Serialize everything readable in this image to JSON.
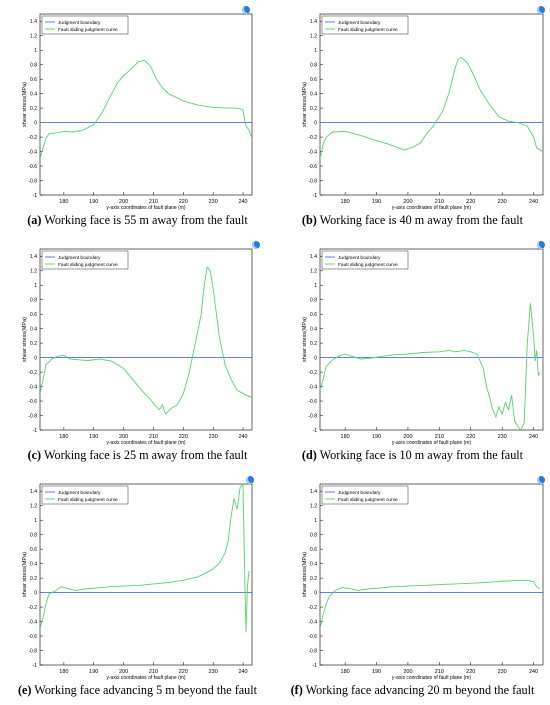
{
  "colors": {
    "boundary": "#4a6fe3",
    "curve": "#59d26b",
    "axis": "#000000",
    "logo": "#2a7bd6"
  },
  "shared": {
    "ylabel": "shear   stress(MPa)",
    "xlabel": "y-axis coordinates of fault plane (m)",
    "legend": [
      "Judgment boundary",
      "Fault sliding judgment curve"
    ],
    "xticks": [
      "180",
      "190",
      "200",
      "210",
      "220",
      "230",
      "240"
    ],
    "yticks": [
      "-1",
      "-0.8",
      "-0.6",
      "-0.4",
      "-0.2",
      "0",
      "0.2",
      "0.4",
      "0.6",
      "0.8",
      "1",
      "1.2",
      "1.4"
    ]
  },
  "captions": [
    {
      "label": "(a)",
      "text": " Working face is 55 m away from the fault"
    },
    {
      "label": "(b)",
      "text": " Working face is 40 m away from the fault"
    },
    {
      "label": "(c)",
      "text": " Working face is 25 m away from the fault"
    },
    {
      "label": "(d)",
      "text": " Working face is 10 m away from the fault"
    },
    {
      "label": "(e)",
      "text": " Working face advancing 5 m beyond the fault"
    },
    {
      "label": "(f)",
      "text": " Working face advancing 20 m beyond the fault"
    }
  ],
  "chart_data": [
    {
      "type": "line",
      "xlim": [
        172,
        243
      ],
      "ylim": [
        -1,
        1.5
      ],
      "xlabel": "y-axis coordinates of fault plane (m)",
      "ylabel": "shear   stress(MPa)",
      "legend_position": "top-left",
      "grid": false,
      "series": [
        {
          "name": "Judgment boundary",
          "x": [
            172,
            243
          ],
          "y": [
            0,
            0
          ]
        },
        {
          "name": "Fault sliding judgment curve",
          "x": [
            172,
            173,
            174,
            175,
            178,
            180,
            183,
            186,
            190,
            193,
            195,
            198,
            200,
            202,
            204,
            205,
            207,
            209,
            211,
            213,
            215,
            220,
            225,
            230,
            235,
            238,
            240,
            240.5,
            241,
            242,
            243
          ],
          "y": [
            -0.5,
            -0.35,
            -0.22,
            -0.15,
            -0.14,
            -0.12,
            -0.13,
            -0.11,
            -0.03,
            0.15,
            0.32,
            0.55,
            0.65,
            0.72,
            0.8,
            0.84,
            0.86,
            0.78,
            0.6,
            0.48,
            0.4,
            0.3,
            0.24,
            0.21,
            0.2,
            0.2,
            0.18,
            0.05,
            -0.05,
            -0.1,
            -0.22
          ]
        }
      ]
    },
    {
      "type": "line",
      "xlim": [
        172,
        243
      ],
      "ylim": [
        -1,
        1.5
      ],
      "xlabel": "y-axis coordinates of fault plane (m)",
      "ylabel": "shear   stress(MPa)",
      "legend_position": "top-left",
      "grid": false,
      "series": [
        {
          "name": "Judgment boundary",
          "x": [
            172,
            243
          ],
          "y": [
            0,
            0
          ]
        },
        {
          "name": "Fault sliding judgment curve",
          "x": [
            172,
            173,
            174,
            176,
            180,
            185,
            190,
            194,
            197,
            199,
            200,
            202,
            204,
            206,
            208,
            211,
            213,
            215,
            216,
            217,
            219,
            221,
            223,
            226,
            229,
            232,
            235,
            238,
            240,
            241,
            243
          ],
          "y": [
            -0.5,
            -0.3,
            -0.2,
            -0.13,
            -0.12,
            -0.18,
            -0.25,
            -0.3,
            -0.35,
            -0.38,
            -0.36,
            -0.33,
            -0.28,
            -0.15,
            -0.05,
            0.15,
            0.4,
            0.75,
            0.88,
            0.9,
            0.82,
            0.65,
            0.45,
            0.25,
            0.08,
            0.02,
            0.0,
            -0.05,
            -0.2,
            -0.35,
            -0.4
          ]
        }
      ]
    },
    {
      "type": "line",
      "xlim": [
        172,
        243
      ],
      "ylim": [
        -1,
        1.5
      ],
      "xlabel": "y-axis coordinates of fault plane (m)",
      "ylabel": "shear   stress(MPa)",
      "legend_position": "top-left",
      "grid": false,
      "series": [
        {
          "name": "Judgment boundary",
          "x": [
            172,
            243
          ],
          "y": [
            0,
            0
          ]
        },
        {
          "name": "Fault sliding judgment curve",
          "x": [
            172,
            173,
            174,
            176,
            178,
            180,
            182,
            185,
            188,
            192,
            196,
            200,
            203,
            206,
            209,
            211,
            212,
            213,
            214,
            216,
            218,
            220,
            222,
            224,
            226,
            227,
            228,
            229,
            230,
            232,
            234,
            236,
            238,
            241,
            243
          ],
          "y": [
            -0.5,
            -0.3,
            -0.1,
            -0.02,
            0.02,
            0.03,
            -0.02,
            -0.03,
            -0.04,
            -0.02,
            -0.05,
            -0.15,
            -0.3,
            -0.45,
            -0.58,
            -0.68,
            -0.72,
            -0.65,
            -0.78,
            -0.7,
            -0.65,
            -0.5,
            -0.2,
            0.2,
            0.6,
            1.0,
            1.25,
            1.2,
            0.95,
            0.3,
            -0.1,
            -0.3,
            -0.45,
            -0.52,
            -0.55
          ]
        }
      ]
    },
    {
      "type": "line",
      "xlim": [
        172,
        243
      ],
      "ylim": [
        -1,
        1.5
      ],
      "xlabel": "y-axis coordinates of fault plane (m)",
      "ylabel": "shear   stress(MPa)",
      "legend_position": "top-left",
      "grid": false,
      "series": [
        {
          "name": "Judgment boundary",
          "x": [
            172,
            243
          ],
          "y": [
            0,
            0
          ]
        },
        {
          "name": "Fault sliding judgment curve",
          "x": [
            172,
            173,
            174,
            176,
            178,
            180,
            182,
            185,
            188,
            192,
            196,
            200,
            205,
            210,
            213,
            215,
            218,
            220,
            222,
            224,
            225,
            226,
            227,
            228,
            229,
            230,
            231,
            232,
            233,
            234,
            235,
            236,
            237,
            238,
            239,
            240,
            240.5,
            241,
            241.5,
            242
          ],
          "y": [
            -0.45,
            -0.3,
            -0.12,
            -0.03,
            0.02,
            0.05,
            0.02,
            -0.02,
            -0.01,
            0.02,
            0.04,
            0.05,
            0.07,
            0.08,
            0.1,
            0.08,
            0.1,
            0.08,
            0.05,
            -0.15,
            -0.4,
            -0.55,
            -0.72,
            -0.82,
            -0.68,
            -0.78,
            -0.62,
            -0.72,
            -0.52,
            -0.88,
            -0.95,
            -1.0,
            -0.9,
            0.2,
            0.75,
            0.3,
            -0.05,
            0.1,
            -0.25,
            -0.2
          ]
        }
      ]
    },
    {
      "type": "line",
      "xlim": [
        172,
        243
      ],
      "ylim": [
        -1,
        1.5
      ],
      "xlabel": "y-axis coordinates of fault plane (m)",
      "ylabel": "shear   stress(MPa)",
      "legend_position": "top-left",
      "grid": false,
      "series": [
        {
          "name": "Judgment boundary",
          "x": [
            172,
            243
          ],
          "y": [
            0,
            0
          ]
        },
        {
          "name": "Fault sliding judgment curve",
          "x": [
            172,
            173,
            174,
            175,
            177,
            179,
            181,
            184,
            187,
            190,
            195,
            200,
            205,
            210,
            215,
            220,
            225,
            228,
            230,
            232,
            234,
            235,
            236,
            237,
            238,
            239,
            240,
            240.5,
            241,
            241.5,
            242
          ],
          "y": [
            -0.5,
            -0.35,
            -0.15,
            -0.02,
            0.02,
            0.08,
            0.06,
            0.03,
            0.05,
            0.06,
            0.08,
            0.09,
            0.1,
            0.12,
            0.14,
            0.17,
            0.22,
            0.28,
            0.33,
            0.4,
            0.55,
            0.7,
            1.05,
            1.3,
            1.15,
            1.45,
            1.5,
            0.4,
            -0.55,
            0.1,
            0.3
          ]
        }
      ]
    },
    {
      "type": "line",
      "xlim": [
        172,
        243
      ],
      "ylim": [
        -1,
        1.5
      ],
      "xlabel": "y-axis coordinates of fault plane (m)",
      "ylabel": "shear   stress(MPa)",
      "legend_position": "top-left",
      "grid": false,
      "series": [
        {
          "name": "Judgment boundary",
          "x": [
            172,
            243
          ],
          "y": [
            0,
            0
          ]
        },
        {
          "name": "Fault sliding judgment curve",
          "x": [
            172,
            173,
            174,
            175,
            177,
            179,
            181,
            184,
            187,
            190,
            195,
            200,
            205,
            210,
            215,
            220,
            225,
            228,
            230,
            232,
            235,
            238,
            240,
            241,
            242
          ],
          "y": [
            -0.5,
            -0.3,
            -0.15,
            -0.05,
            0.03,
            0.07,
            0.06,
            0.03,
            0.05,
            0.06,
            0.08,
            0.09,
            0.1,
            0.11,
            0.12,
            0.13,
            0.14,
            0.15,
            0.16,
            0.16,
            0.17,
            0.17,
            0.15,
            0.08,
            0.05
          ]
        }
      ]
    }
  ]
}
